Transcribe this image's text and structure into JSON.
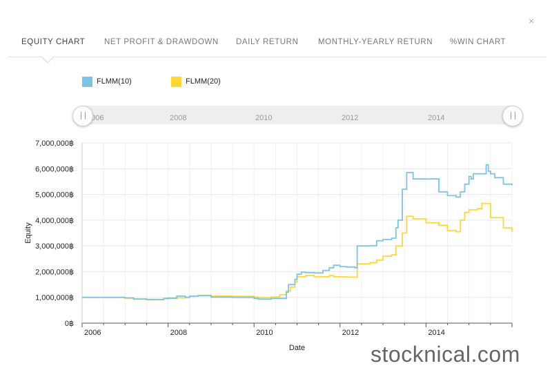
{
  "close_label": "×",
  "tabs": [
    {
      "label": "EQUITY CHART",
      "active": true
    },
    {
      "label": "NET PROFIT & DRAWDOWN",
      "active": false
    },
    {
      "label": "DAILY RETURN",
      "active": false
    },
    {
      "label": "MONTHLY-YEARLY RETURN",
      "active": false
    },
    {
      "label": "%WIN CHART",
      "active": false
    }
  ],
  "navigator_labels": [
    "2006",
    "2008",
    "2010",
    "2012",
    "2014"
  ],
  "watermark": "stocknical.com",
  "chart_data": {
    "type": "line",
    "xlabel": "Date",
    "ylabel": "Equity",
    "xlim": [
      2006.0,
      2016.0
    ],
    "ylim": [
      0,
      7000000
    ],
    "x_ticks": [
      "2006",
      "2008",
      "2010",
      "2012",
      "2014"
    ],
    "x_tick_values": [
      2006,
      2008,
      2010,
      2012,
      2014
    ],
    "y_ticks": [
      "0฿",
      "1,000,000฿",
      "2,000,000฿",
      "3,000,000฿",
      "4,000,000฿",
      "5,000,000฿",
      "6,000,000฿",
      "7,000,000฿"
    ],
    "y_tick_values": [
      0,
      1000000,
      2000000,
      3000000,
      4000000,
      5000000,
      6000000,
      7000000
    ],
    "grid": true,
    "legend_position": "top-left",
    "series": [
      {
        "name": "FLMM(10)",
        "color": "#7ec4e2",
        "x": [
          2006.0,
          2007.0,
          2007.2,
          2007.5,
          2007.9,
          2008.0,
          2008.2,
          2008.4,
          2008.5,
          2008.7,
          2009.0,
          2009.5,
          2010.0,
          2010.1,
          2010.4,
          2010.75,
          2010.8,
          2010.95,
          2011.0,
          2011.1,
          2011.2,
          2011.4,
          2011.6,
          2011.75,
          2011.85,
          2012.0,
          2012.15,
          2012.35,
          2012.4,
          2012.7,
          2012.85,
          2013.0,
          2013.2,
          2013.3,
          2013.35,
          2013.45,
          2013.55,
          2013.7,
          2014.0,
          2014.3,
          2014.5,
          2014.7,
          2014.8,
          2014.9,
          2015.0,
          2015.05,
          2015.1,
          2015.3,
          2015.4,
          2015.45,
          2015.5,
          2015.6,
          2015.8,
          2016.0
        ],
        "values": [
          1000000,
          980000,
          940000,
          920000,
          960000,
          970000,
          1050000,
          1000000,
          1050000,
          1070000,
          1010000,
          1000000,
          960000,
          930000,
          960000,
          1200000,
          1500000,
          1700000,
          1900000,
          1980000,
          1960000,
          1950000,
          2050000,
          2150000,
          2250000,
          2200000,
          2180000,
          2150000,
          3000000,
          3010000,
          3200000,
          3250000,
          3300000,
          3700000,
          4000000,
          5200000,
          5850000,
          5600000,
          5600000,
          5100000,
          4950000,
          4900000,
          5100000,
          5400000,
          5700000,
          5600000,
          5800000,
          5800000,
          6150000,
          5900000,
          5800000,
          5650000,
          5400000,
          5350000
        ]
      },
      {
        "name": "FLMM(20)",
        "color": "#fdd835",
        "x": [
          2006.0,
          2007.0,
          2007.2,
          2007.5,
          2007.9,
          2008.0,
          2008.2,
          2008.4,
          2008.5,
          2008.7,
          2009.0,
          2009.5,
          2010.0,
          2010.1,
          2010.4,
          2010.6,
          2010.75,
          2010.85,
          2010.95,
          2011.0,
          2011.2,
          2011.4,
          2011.6,
          2011.75,
          2011.85,
          2012.0,
          2012.15,
          2012.35,
          2012.4,
          2012.7,
          2012.85,
          2013.0,
          2013.2,
          2013.3,
          2013.45,
          2013.55,
          2013.7,
          2014.0,
          2014.3,
          2014.5,
          2014.7,
          2014.8,
          2014.9,
          2015.0,
          2015.2,
          2015.3,
          2015.5,
          2015.8,
          2016.0
        ],
        "values": [
          1000000,
          970000,
          930000,
          910000,
          950000,
          960000,
          980000,
          1000000,
          1050000,
          1080000,
          1050000,
          1040000,
          1010000,
          990000,
          1020000,
          1100000,
          1250000,
          1400000,
          1600000,
          1800000,
          1850000,
          1800000,
          1800000,
          1850000,
          1800000,
          1800000,
          1790000,
          1780000,
          2300000,
          2350000,
          2450000,
          2600000,
          2650000,
          3000000,
          3500000,
          4150000,
          4050000,
          3900000,
          3800000,
          3600000,
          3550000,
          4000000,
          4300000,
          4400000,
          4450000,
          4650000,
          4100000,
          3700000,
          3550000
        ]
      }
    ]
  }
}
